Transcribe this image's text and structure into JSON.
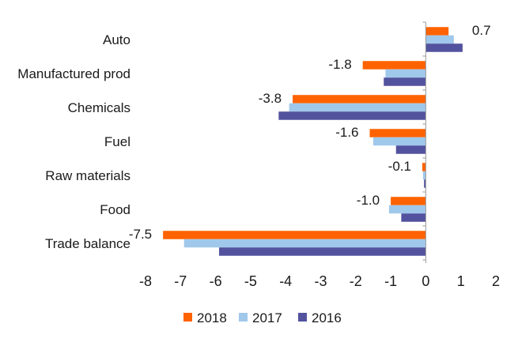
{
  "chart_data": {
    "type": "bar",
    "orientation": "horizontal",
    "title": "",
    "xlabel": "",
    "ylabel": "",
    "categories": [
      "Auto",
      "Manufactured prod",
      "Chemicals",
      "Fuel",
      "Raw materials",
      "Food",
      "Trade balance"
    ],
    "series": [
      {
        "name": "2018",
        "color": "#ff6200",
        "values": [
          0.65,
          -1.8,
          -3.8,
          -1.6,
          -0.1,
          -1.0,
          -7.5
        ]
      },
      {
        "name": "2017",
        "color": "#a0c8eb",
        "values": [
          0.8,
          -1.15,
          -3.9,
          -1.5,
          -0.08,
          -1.05,
          -6.9
        ]
      },
      {
        "name": "2016",
        "color": "#52529e",
        "values": [
          1.05,
          -1.2,
          -4.2,
          -0.85,
          -0.05,
          -0.7,
          -5.9
        ]
      }
    ],
    "data_labels": [
      "0.7",
      "-1.8",
      "-3.8",
      "-1.6",
      "-0.1",
      "-1.0",
      "-7.5"
    ],
    "xlim": [
      -8,
      2
    ],
    "xticks": [
      -8,
      -7,
      -6,
      -5,
      -4,
      -3,
      -2,
      -1,
      0,
      1,
      2
    ],
    "grid": false,
    "legend_position": "bottom"
  }
}
